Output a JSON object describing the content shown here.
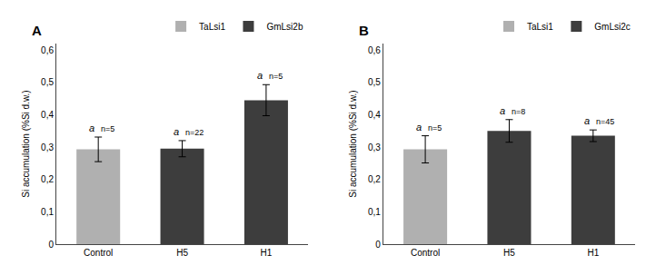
{
  "chart_data": [
    {
      "type": "bar",
      "title": "A",
      "categories": [
        "Control",
        "H5",
        "H1"
      ],
      "series": [
        {
          "name": "TaLsi1",
          "color": "#b0b0b0",
          "values": [
            0.293,
            null,
            null
          ],
          "errors": [
            0.038,
            null,
            null
          ]
        },
        {
          "name": "GmLsi2b",
          "color": "#3d3d3d",
          "values": [
            null,
            0.295,
            0.445
          ],
          "errors": [
            null,
            0.025,
            0.048
          ]
        }
      ],
      "annotations": [
        {
          "category": "Control",
          "texts": [
            "a",
            "n=5"
          ]
        },
        {
          "category": "H5",
          "texts": [
            "a",
            "n=22"
          ]
        },
        {
          "category": "H1",
          "texts": [
            "a",
            "n=5"
          ]
        }
      ],
      "ylabel": "Si accumulation (%Si d.w.)",
      "ylim": [
        0,
        0.62
      ],
      "yticks": [
        0,
        {
          "value": 0.1,
          "label": "0,1"
        },
        {
          "value": 0.2,
          "label": "0,2"
        },
        {
          "value": 0.3,
          "label": "0,3"
        },
        {
          "value": 0.4,
          "label": "0,4"
        },
        {
          "value": 0.5,
          "label": "0,5"
        },
        {
          "value": 0.6,
          "label": "0,6"
        }
      ],
      "grid": false,
      "legend": "upper right"
    },
    {
      "type": "bar",
      "title": "B",
      "categories": [
        "Control",
        "H5",
        "H1"
      ],
      "series": [
        {
          "name": "TaLsi1",
          "color": "#b0b0b0",
          "values": [
            0.293,
            null,
            null
          ],
          "errors": [
            0.042,
            null,
            null
          ]
        },
        {
          "name": "GmLsi2c",
          "color": "#3d3d3d",
          "values": [
            null,
            0.35,
            0.335
          ],
          "errors": [
            null,
            0.035,
            0.018
          ]
        }
      ],
      "annotations": [
        {
          "category": "Control",
          "texts": [
            "a",
            "n=5"
          ]
        },
        {
          "category": "H5",
          "texts": [
            "a",
            "n=8"
          ]
        },
        {
          "category": "H1",
          "texts": [
            "a",
            "n=45"
          ]
        }
      ],
      "ylabel": "Si accumulation (%Si d.w.)",
      "ylim": [
        0,
        0.62
      ],
      "yticks": [
        0,
        {
          "value": 0.1,
          "label": "0,1"
        },
        {
          "value": 0.2,
          "label": "0,2"
        },
        {
          "value": 0.3,
          "label": "0,3"
        },
        {
          "value": 0.4,
          "label": "0,4"
        },
        {
          "value": 0.5,
          "label": "0,5"
        },
        {
          "value": 0.6,
          "label": "0,6"
        }
      ],
      "grid": false,
      "legend": "upper right"
    }
  ]
}
